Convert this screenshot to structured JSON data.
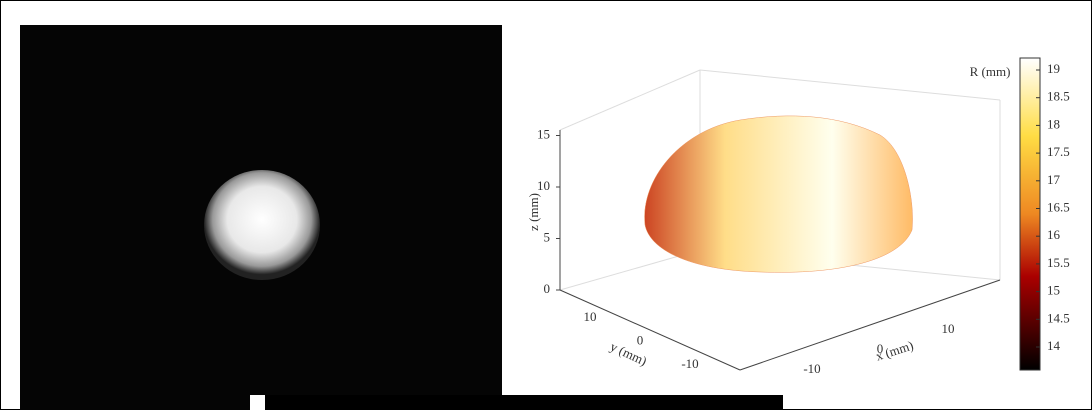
{
  "plot": {
    "z_label": "z (mm)",
    "y_label": "y (mm)",
    "x_label": "x (mm)",
    "z_ticks": [
      0,
      5,
      10,
      15
    ],
    "y_ticks": [
      10,
      0,
      -10
    ],
    "x_ticks": [
      -10,
      0,
      10
    ],
    "colorbar": {
      "label": "R (mm)",
      "ticks": [
        14,
        14.5,
        15,
        15.5,
        16,
        16.5,
        17,
        17.5,
        18,
        18.5,
        19
      ]
    }
  }
}
